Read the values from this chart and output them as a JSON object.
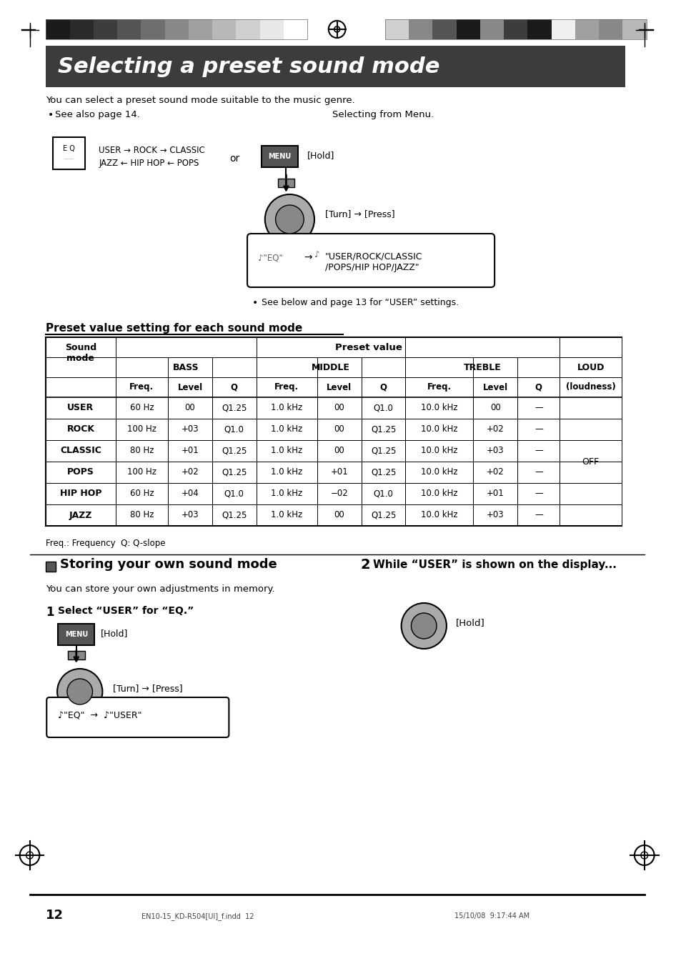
{
  "page_title": "Selecting a preset sound mode",
  "page_title_bg": "#3a3a3a",
  "page_title_color": "#ffffff",
  "section2_title": "Storing your own sound mode",
  "body_bg": "#ffffff",
  "text_color": "#000000",
  "intro_text": "You can select a preset sound mode suitable to the music genre.",
  "see_also": "See also page 14.",
  "selecting_from_menu": "Selecting from Menu.",
  "eq_cycle": [
    "USER → ROCK → CLASSIC",
    "JAZZ ← HIP HOP ← POPS"
  ],
  "table_title": "Preset value setting for each sound mode",
  "table_headers_row1": [
    "Sound\nmode",
    "Preset value"
  ],
  "table_headers_row2": [
    "",
    "BASS",
    "",
    "",
    "MIDDLE",
    "",
    "",
    "TREBLE",
    "",
    "",
    "LOUD"
  ],
  "table_headers_row3": [
    "",
    "Freq.",
    "Level",
    "Q",
    "Freq.",
    "Level",
    "Q",
    "Freq.",
    "Level",
    "Q",
    "(loudness)"
  ],
  "table_data": [
    [
      "USER",
      "60 Hz",
      "00",
      "Q1.25",
      "1.0 kHz",
      "00",
      "Q1.0",
      "10.0 kHz",
      "00",
      "—",
      ""
    ],
    [
      "ROCK",
      "100 Hz",
      "+03",
      "Q1.0",
      "1.0 kHz",
      "00",
      "Q1.25",
      "10.0 kHz",
      "+02",
      "—",
      ""
    ],
    [
      "CLASSIC",
      "80 Hz",
      "+01",
      "Q1.25",
      "1.0 kHz",
      "00",
      "Q1.25",
      "10.0 kHz",
      "+03",
      "—",
      "OFF"
    ],
    [
      "POPS",
      "100 Hz",
      "+02",
      "Q1.25",
      "1.0 kHz",
      "+01",
      "Q1.25",
      "10.0 kHz",
      "+02",
      "—",
      ""
    ],
    [
      "HIP HOP",
      "60 Hz",
      "+04",
      "Q1.0",
      "1.0 kHz",
      "−02",
      "Q1.0",
      "10.0 kHz",
      "+01",
      "—",
      ""
    ],
    [
      "JAZZ",
      "80 Hz",
      "+03",
      "Q1.25",
      "1.0 kHz",
      "00",
      "Q1.25",
      "10.0 kHz",
      "+03",
      "—",
      ""
    ]
  ],
  "table_footnote": "Freq.: Frequency  Q: Q-slope",
  "store_intro": "You can store your own adjustments in memory.",
  "step1_title": "Select “USER” for “EQ.”",
  "step2_title": "While “USER” is shown on the display...",
  "hold_text": "[Hold]",
  "turn_press_text": "[Turn] → [Press]",
  "eq_user_display": "“EQ”  →  “USER”",
  "eq_display_main": "“EQ”     “USER/ROCK/CLASSIC\n/POPS/HIP HOP/JAZZ”",
  "footer_page": "12",
  "footer_left": "EN10-15_KD-R504[UI]_f.indd  12",
  "footer_right": "15/10/08  9:17:44 AM",
  "color_bar_left": [
    "#1a1a1a",
    "#2a2a2a",
    "#3d3d3d",
    "#555555",
    "#6e6e6e",
    "#888888",
    "#a0a0a0",
    "#b8b8b8",
    "#d0d0d0",
    "#e8e8e8",
    "#ffffff"
  ],
  "color_bar_right": [
    "#d0d0d0",
    "#888888",
    "#555555",
    "#1a1a1a",
    "#888888",
    "#3d3d3d",
    "#1a1a1a",
    "#f0f0f0",
    "#a0a0a0",
    "#888888",
    "#b8b8b8"
  ],
  "crosshair_color": "#000000",
  "arrow_color": "#000000"
}
